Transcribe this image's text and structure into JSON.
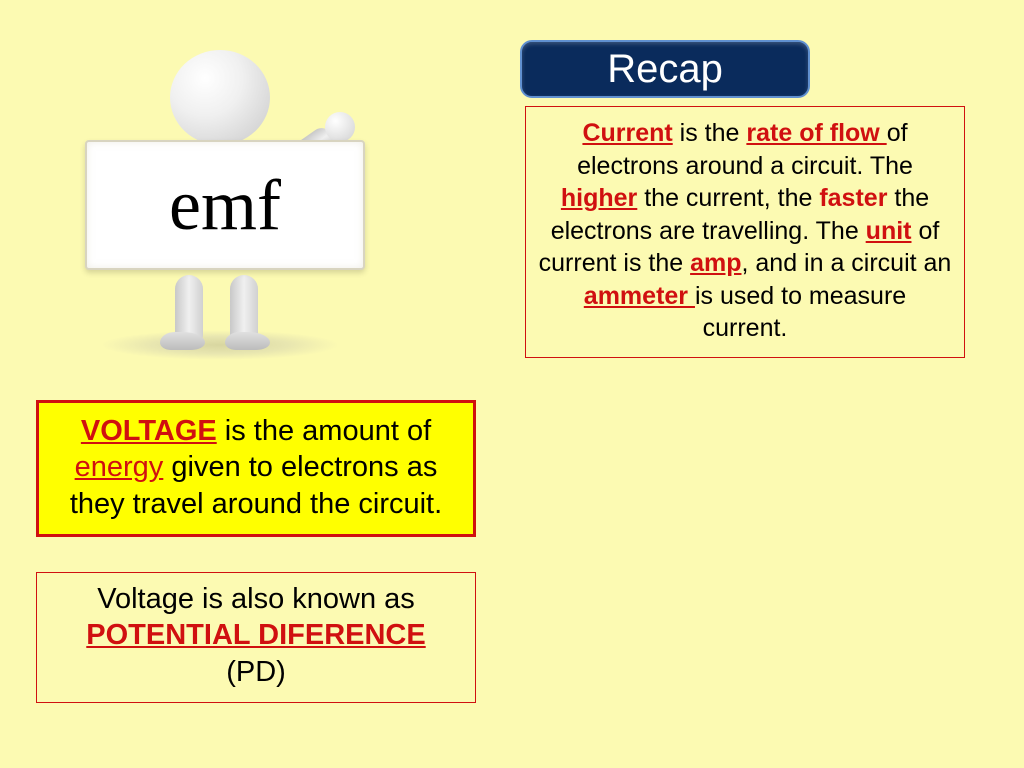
{
  "colors": {
    "slide_bg": "#fcfab2",
    "recap_bg": "#0a2b5c",
    "recap_border": "#6090d0",
    "recap_text": "#ffffff",
    "accent_red": "#d01010",
    "highlight_yellow": "#ffff00",
    "sign_bg": "#ffffff",
    "body_text": "#000000"
  },
  "typography": {
    "font_family": "Comic Sans MS",
    "recap_fontsize_pt": 30,
    "body_fontsize_pt": 19,
    "voltage_fontsize_pt": 22,
    "sign_fontsize_pt": 54
  },
  "sign": {
    "text": "emf"
  },
  "recap": {
    "title": "Recap"
  },
  "current_box": {
    "runs": [
      {
        "t": "Current",
        "red": true,
        "under": true,
        "bold": true
      },
      {
        "t": " is the "
      },
      {
        "t": "rate of flow ",
        "red": true,
        "under": true,
        "bold": true
      },
      {
        "t": "of electrons around a circuit.  The "
      },
      {
        "t": "higher",
        "red": true,
        "under": true,
        "bold": true
      },
      {
        "t": " the current, the "
      },
      {
        "t": "faster",
        "red": true,
        "bold": true
      },
      {
        "t": " the electrons are travelling.  The "
      },
      {
        "t": "unit",
        "red": true,
        "under": true,
        "bold": true
      },
      {
        "t": " of current is the "
      },
      {
        "t": "amp",
        "red": true,
        "under": true,
        "bold": true
      },
      {
        "t": ", and in a circuit an "
      },
      {
        "t": "ammeter ",
        "red": true,
        "under": true,
        "bold": true
      },
      {
        "t": "is used to measure current."
      }
    ]
  },
  "voltage_box": {
    "runs": [
      {
        "t": "VOLTAGE",
        "red": true,
        "under": true,
        "bold": true
      },
      {
        "t": " is the amount of "
      },
      {
        "t": "energy",
        "red": true,
        "under": true
      },
      {
        "t": " given to electrons as they travel around the circuit."
      }
    ]
  },
  "pd_box": {
    "line1": "Voltage is also known as",
    "line2": "POTENTIAL DIFERENCE",
    "line3": "(PD)"
  }
}
